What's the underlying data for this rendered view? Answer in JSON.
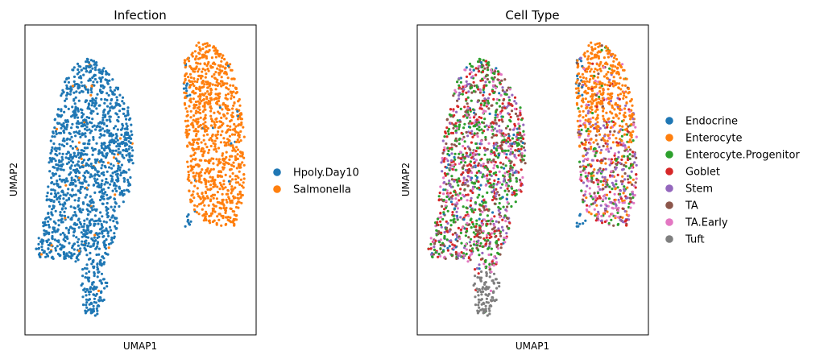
{
  "chart_data": [
    {
      "type": "scatter",
      "title": "Infection",
      "xlabel": "UMAP1",
      "ylabel": "UMAP2",
      "xticks": [],
      "yticks": [],
      "legend_position": "right-outside",
      "categories": [
        {
          "name": "Hpoly.Day10",
          "color": "#1f77b4"
        },
        {
          "name": "Salmonella",
          "color": "#ff7f0e"
        }
      ],
      "clusters": [
        {
          "name": "left cluster",
          "dominant": "Hpoly.Day10",
          "minority": "Salmonella",
          "minority_share": 0.02
        },
        {
          "name": "right cluster",
          "dominant": "Salmonella",
          "minority": "Hpoly.Day10",
          "minority_share": 0.03
        }
      ]
    },
    {
      "type": "scatter",
      "title": "Cell Type",
      "xlabel": "UMAP1",
      "ylabel": "UMAP2",
      "xticks": [],
      "yticks": [],
      "legend_position": "right-outside",
      "categories": [
        {
          "name": "Endocrine",
          "color": "#1f77b4"
        },
        {
          "name": "Enterocyte",
          "color": "#ff7f0e"
        },
        {
          "name": "Enterocyte.Progenitor",
          "color": "#2ca02c"
        },
        {
          "name": "Goblet",
          "color": "#d62728"
        },
        {
          "name": "Stem",
          "color": "#9467bd"
        },
        {
          "name": "TA",
          "color": "#8c564b"
        },
        {
          "name": "TA.Early",
          "color": "#e377c2"
        },
        {
          "name": "Tuft",
          "color": "#7f7f7f"
        }
      ]
    }
  ]
}
